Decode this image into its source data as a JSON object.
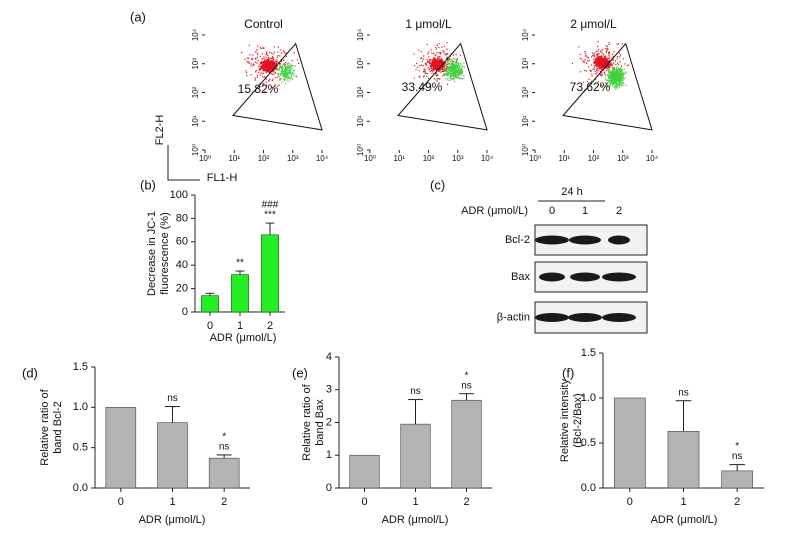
{
  "chart_data": [
    {
      "type": "flow",
      "panel_label": "(a)",
      "title": "Control",
      "gate_label": "15.82%",
      "y_label": "FL2-H",
      "x_label": "FL1-H",
      "log": true,
      "xlim": [
        1,
        10000
      ],
      "ylim": [
        1,
        10000
      ],
      "xticks": [
        {
          "value": 1,
          "label": "10⁰"
        },
        {
          "value": 10,
          "label": "10¹"
        },
        {
          "value": 100,
          "label": "10²"
        },
        {
          "value": 1000,
          "label": "10³"
        },
        {
          "value": 10000,
          "label": "10⁴"
        }
      ],
      "yticks": [
        {
          "value": 1,
          "label": "10⁰"
        },
        {
          "value": 10,
          "label": "10¹"
        },
        {
          "value": 100,
          "label": "10²"
        },
        {
          "value": 1000,
          "label": "10³"
        },
        {
          "value": 10000,
          "label": "10⁴"
        }
      ]
    },
    {
      "type": "flow",
      "title": "1 μmol/L",
      "gate_label": "33.49%",
      "log": true,
      "xlim": [
        1,
        10000
      ],
      "ylim": [
        1,
        10000
      ],
      "xticks": [
        {
          "value": 1,
          "label": "10⁰"
        },
        {
          "value": 10,
          "label": "10¹"
        },
        {
          "value": 100,
          "label": "10²"
        },
        {
          "value": 1000,
          "label": "10³"
        },
        {
          "value": 10000,
          "label": "10⁴"
        }
      ],
      "yticks": [
        {
          "value": 1,
          "label": "10⁰"
        },
        {
          "value": 10,
          "label": "10¹"
        },
        {
          "value": 100,
          "label": "10²"
        },
        {
          "value": 1000,
          "label": "10³"
        },
        {
          "value": 10000,
          "label": "10⁴"
        }
      ]
    },
    {
      "type": "flow",
      "title": "2 μmol/L",
      "gate_label": "73.62%",
      "log": true,
      "xlim": [
        1,
        10000
      ],
      "ylim": [
        1,
        10000
      ],
      "xticks": [
        {
          "value": 1,
          "label": "10⁰"
        },
        {
          "value": 10,
          "label": "10¹"
        },
        {
          "value": 100,
          "label": "10²"
        },
        {
          "value": 1000,
          "label": "10³"
        },
        {
          "value": 10000,
          "label": "10⁴"
        }
      ],
      "yticks": [
        {
          "value": 1,
          "label": "10⁰"
        },
        {
          "value": 10,
          "label": "10¹"
        },
        {
          "value": 100,
          "label": "10²"
        },
        {
          "value": 1000,
          "label": "10³"
        },
        {
          "value": 10000,
          "label": "10⁴"
        }
      ]
    },
    {
      "type": "bar",
      "panel_label": "(b)",
      "y_label": [
        "Decrease in JC-1",
        "fluorescence (%)"
      ],
      "x_label": "ADR (μmol/L)",
      "color": "#22ee22",
      "categories": [
        "0",
        "1",
        "2"
      ],
      "values": [
        14,
        32,
        66
      ],
      "errors": [
        2,
        3,
        10
      ],
      "significance": [
        [],
        [
          "**"
        ],
        [
          "###",
          "***"
        ]
      ],
      "ylim": [
        0,
        100
      ],
      "yticks": [
        0,
        20,
        40,
        60,
        80,
        100
      ]
    },
    {
      "type": "blot",
      "panel_label": "(c)",
      "time_label": "24 h",
      "x_label": "ADR (μmol/L)",
      "lanes": [
        "0",
        "1",
        "2"
      ],
      "rows": [
        "Bcl-2",
        "Bax",
        "β-actin"
      ]
    },
    {
      "type": "bar",
      "panel_label": "(d)",
      "y_label": [
        "Relative ratio of",
        "band Bcl-2"
      ],
      "x_label": "ADR (μmol/L)",
      "color": "#b3b3b3",
      "categories": [
        "0",
        "1",
        "2"
      ],
      "values": [
        1.0,
        0.81,
        0.37
      ],
      "errors": [
        0,
        0.2,
        0.04
      ],
      "significance": [
        [],
        [
          "ns"
        ],
        [
          "*",
          "ns"
        ]
      ],
      "ylim": [
        0,
        1.5
      ],
      "yticks": [
        {
          "value": 0,
          "label": "0.0"
        },
        {
          "value": 0.5,
          "label": "0.5"
        },
        {
          "value": 1,
          "label": "1.0"
        },
        {
          "value": 1.5,
          "label": "1.5"
        }
      ]
    },
    {
      "type": "bar",
      "panel_label": "(e)",
      "y_label": [
        "Relative ratio of",
        "band Bax"
      ],
      "x_label": "ADR (μmol/L)",
      "color": "#b3b3b3",
      "categories": [
        "0",
        "1",
        "2"
      ],
      "values": [
        1,
        1.95,
        2.68
      ],
      "errors": [
        0,
        0.75,
        0.2
      ],
      "significance": [
        [],
        [
          "ns"
        ],
        [
          "*",
          "ns"
        ]
      ],
      "ylim": [
        0,
        4
      ],
      "yticks": [
        0,
        1,
        2,
        3,
        4
      ]
    },
    {
      "type": "bar",
      "panel_label": "(f)",
      "y_label": [
        "Relative intensity",
        "(Bcl-2/Bax)"
      ],
      "x_label": "ADR (μmol/L)",
      "color": "#b3b3b3",
      "categories": [
        "0",
        "1",
        "2"
      ],
      "values": [
        1.0,
        0.63,
        0.19
      ],
      "errors": [
        0,
        0.34,
        0.07
      ],
      "significance": [
        [],
        [
          "ns"
        ],
        [
          "*",
          "ns"
        ]
      ],
      "ylim": [
        0,
        1.5
      ],
      "yticks": [
        {
          "value": 0,
          "label": "0.0"
        },
        {
          "value": 0.5,
          "label": "0.5"
        },
        {
          "value": 1,
          "label": "1.0"
        },
        {
          "value": 1.5,
          "label": "1.5"
        }
      ]
    }
  ]
}
